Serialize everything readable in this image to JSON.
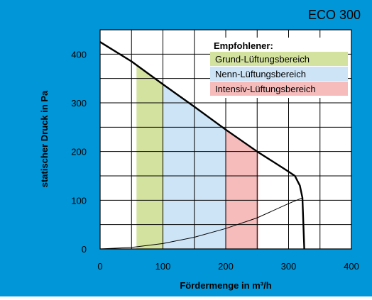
{
  "colors": {
    "frame": "#0096d8",
    "grund": "#d4e2a0",
    "nenn": "#cde4f7",
    "intensiv": "#f6bcbc",
    "curve": "#000000"
  },
  "chart_data": {
    "type": "line",
    "title": "ECO 300",
    "xlabel": "Fördermenge in m³/h",
    "ylabel": "statischer Druck in Pa",
    "xlim": [
      0,
      400
    ],
    "ylim": [
      0,
      450
    ],
    "xticks": [
      "0",
      "100",
      "200",
      "300",
      "400"
    ],
    "yticks": [
      "0",
      "100",
      "200",
      "300",
      "400"
    ],
    "grid": true,
    "legend": {
      "title": "Empfohlener:",
      "placement": "top-right",
      "items": [
        {
          "label": "Grund-Lüftungsbereich",
          "color": "#d4e2a0"
        },
        {
          "label": "Nenn-Lüftungsbereich",
          "color": "#cde4f7"
        },
        {
          "label": "Intensiv-Lüftungsbereich",
          "color": "#f6bcbc"
        }
      ]
    },
    "bands": [
      {
        "label": "Grund-Lüftungsbereich",
        "x_from": 58,
        "x_to": 100,
        "color": "#d4e2a0"
      },
      {
        "label": "Nenn-Lüftungsbereich",
        "x_from": 100,
        "x_to": 200,
        "color": "#cde4f7"
      },
      {
        "label": "Intensiv-Lüftungsbereich",
        "x_from": 200,
        "x_to": 252,
        "color": "#f6bcbc"
      }
    ],
    "series": [
      {
        "kind": "fan-curve",
        "points": [
          [
            0,
            425
          ],
          [
            50,
            385
          ],
          [
            100,
            338
          ],
          [
            150,
            292
          ],
          [
            200,
            245
          ],
          [
            250,
            200
          ],
          [
            295,
            163
          ],
          [
            310,
            150
          ],
          [
            318,
            130
          ],
          [
            322,
            105
          ],
          [
            325,
            0
          ]
        ]
      },
      {
        "kind": "system-curve",
        "points": [
          [
            0,
            0
          ],
          [
            50,
            3
          ],
          [
            100,
            11
          ],
          [
            150,
            24
          ],
          [
            200,
            42
          ],
          [
            250,
            64
          ],
          [
            300,
            93
          ],
          [
            322,
            105
          ]
        ]
      }
    ]
  }
}
